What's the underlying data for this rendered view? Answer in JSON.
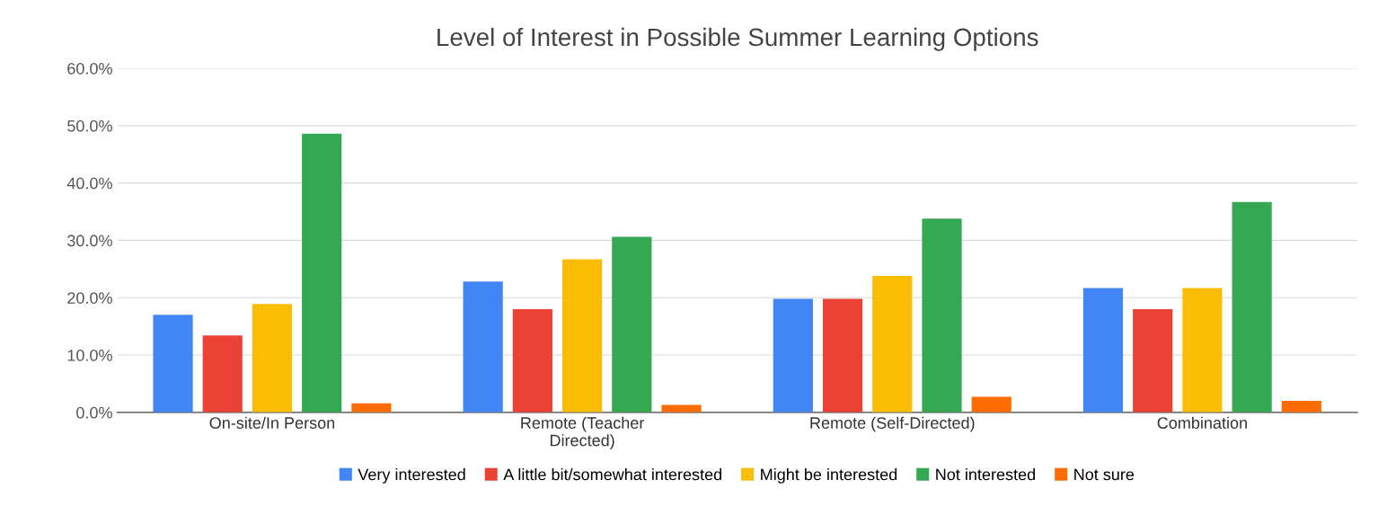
{
  "chart_data": {
    "type": "bar",
    "title": "Level of Interest in Possible Summer Learning Options",
    "categories": [
      "On-site/In Person",
      "Remote (Teacher\nDirected)",
      "Remote (Self-Directed)",
      "Combination"
    ],
    "series": [
      {
        "name": "Very interested",
        "color": "#4285f4",
        "values": [
          17.0,
          22.8,
          19.8,
          21.7
        ]
      },
      {
        "name": "A little bit/somewhat interested",
        "color": "#ea4335",
        "values": [
          13.4,
          18.0,
          19.8,
          18.0
        ]
      },
      {
        "name": "Might be interested",
        "color": "#fbbc04",
        "values": [
          18.9,
          26.7,
          23.8,
          21.7
        ]
      },
      {
        "name": "Not interested",
        "color": "#34a853",
        "values": [
          48.6,
          30.6,
          33.8,
          36.7
        ]
      },
      {
        "name": "Not sure",
        "color": "#ff6d01",
        "values": [
          1.6,
          1.3,
          2.7,
          2.0
        ]
      }
    ],
    "ylim": [
      0,
      60
    ],
    "yticks": [
      {
        "value": 0,
        "label": "0.0%"
      },
      {
        "value": 10,
        "label": "10.0%"
      },
      {
        "value": 20,
        "label": "20.0%"
      },
      {
        "value": 30,
        "label": "30.0%"
      },
      {
        "value": 40,
        "label": "40.0%"
      },
      {
        "value": 50,
        "label": "50.0%"
      },
      {
        "value": 60,
        "label": "60.0%"
      }
    ],
    "grid": "y",
    "legend": "bottom"
  }
}
